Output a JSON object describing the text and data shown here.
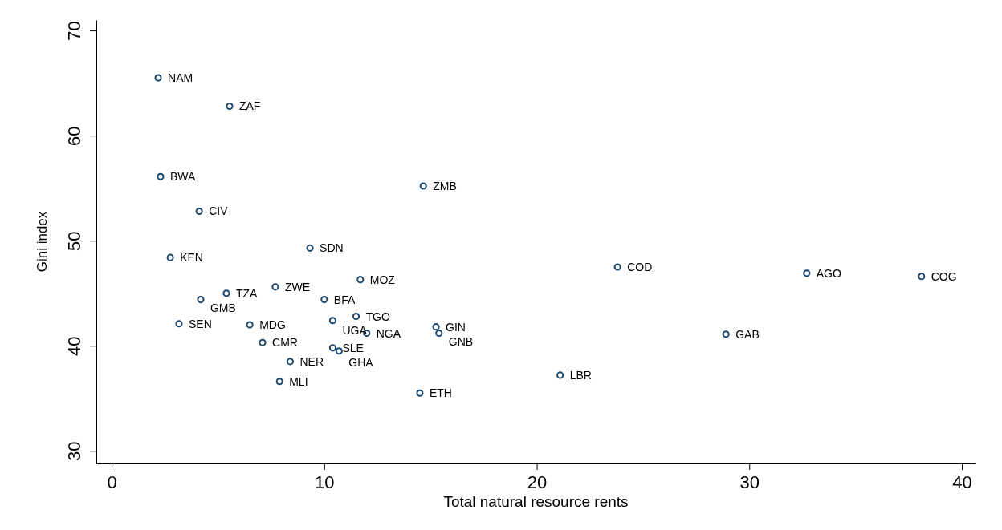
{
  "chart_data": {
    "type": "scatter",
    "xlabel": "Total natural resource rents",
    "ylabel": "Gini index",
    "xlim": [
      -0.72,
      40.64
    ],
    "ylim": [
      28.8,
      71.0
    ],
    "xticks": [
      0,
      10,
      20,
      30,
      40
    ],
    "yticks": [
      30,
      40,
      50,
      60,
      70
    ],
    "grid": false,
    "marker": "circle",
    "series": [
      {
        "color": "#1a476f",
        "x": [
          2.19,
          5.55,
          2.3,
          4.12,
          2.76,
          9.33,
          14.66,
          23.8,
          32.7,
          38.1,
          11.7,
          7.7,
          5.4,
          4.19,
          10.0,
          11.5,
          10.4,
          3.17,
          6.5,
          15.26,
          15.4,
          12.0,
          28.9,
          7.1,
          10.4,
          10.7,
          8.4,
          21.1,
          7.9,
          14.5
        ],
        "values": [
          65.5,
          62.8,
          56.1,
          52.8,
          48.4,
          49.3,
          55.2,
          47.5,
          46.9,
          46.6,
          46.3,
          45.6,
          45.0,
          44.4,
          44.4,
          42.8,
          42.4,
          42.1,
          42.0,
          41.8,
          41.2,
          41.2,
          41.1,
          40.3,
          39.8,
          39.5,
          38.5,
          37.2,
          36.6,
          35.5
        ],
        "value_labels": [
          "NAM",
          "ZAF",
          "BWA",
          "CIV",
          "KEN",
          "SDN",
          "ZMB",
          "COD",
          "AGO",
          "COG",
          "MOZ",
          "ZWE",
          "TZA",
          "GMB",
          "BFA",
          "TGO",
          "UGA",
          "SEN",
          "MDG",
          "GIN",
          "GNB",
          "NGA",
          "GAB",
          "CMR",
          "SLE",
          "GHA",
          "NER",
          "LBR",
          "MLI",
          "ETH"
        ]
      }
    ]
  }
}
